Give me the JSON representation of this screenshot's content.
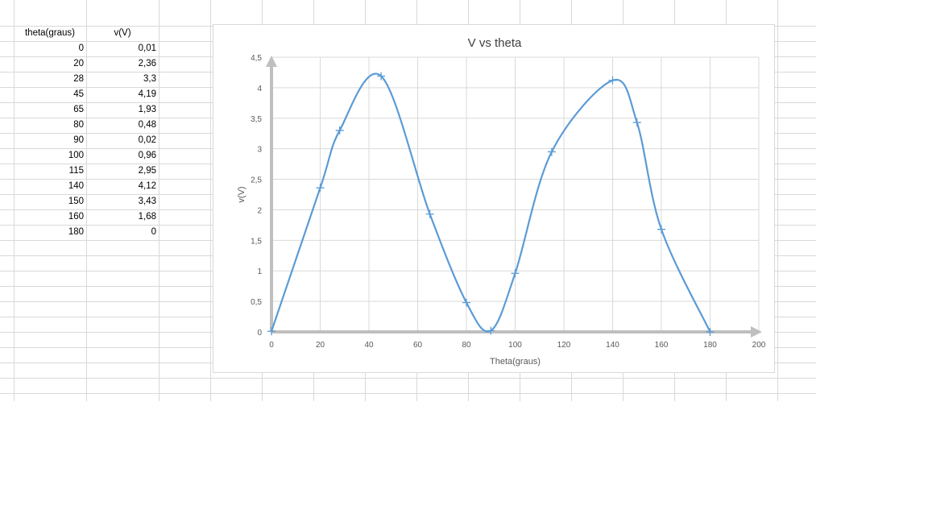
{
  "sheet": {
    "headers": [
      "theta(graus)",
      "v(V)"
    ],
    "rows": [
      [
        "0",
        "0,01"
      ],
      [
        "20",
        "2,36"
      ],
      [
        "28",
        "3,3"
      ],
      [
        "45",
        "4,19"
      ],
      [
        "65",
        "1,93"
      ],
      [
        "80",
        "0,48"
      ],
      [
        "90",
        "0,02"
      ],
      [
        "100",
        "0,96"
      ],
      [
        "115",
        "2,95"
      ],
      [
        "140",
        "4,12"
      ],
      [
        "150",
        "3,43"
      ],
      [
        "160",
        "1,68"
      ],
      [
        "180",
        "0"
      ]
    ]
  },
  "chart_data": {
    "type": "scatter",
    "title": "V vs theta",
    "xlabel": "Theta(graus)",
    "ylabel": "v(V)",
    "xlim": [
      0,
      200
    ],
    "ylim": [
      0,
      4.5
    ],
    "xticks": [
      "0",
      "20",
      "40",
      "60",
      "80",
      "100",
      "120",
      "140",
      "160",
      "180",
      "200"
    ],
    "yticks": [
      "0",
      "0,5",
      "1",
      "1,5",
      "2",
      "2,5",
      "3",
      "3,5",
      "4",
      "4,5"
    ],
    "series": [
      {
        "x": [
          0,
          20,
          28,
          45,
          65,
          80,
          90,
          100,
          115,
          140,
          150,
          160,
          180
        ],
        "y": [
          0.01,
          2.36,
          3.3,
          4.19,
          1.93,
          0.48,
          0.02,
          0.96,
          2.95,
          4.12,
          3.43,
          1.68,
          0
        ],
        "marker": "plus",
        "line": "smooth"
      }
    ],
    "grid": true,
    "legend": "none",
    "colors": {
      "series": "#5b9bd5",
      "axis": "#bfbfbf",
      "grid": "#d9d9d9"
    }
  }
}
